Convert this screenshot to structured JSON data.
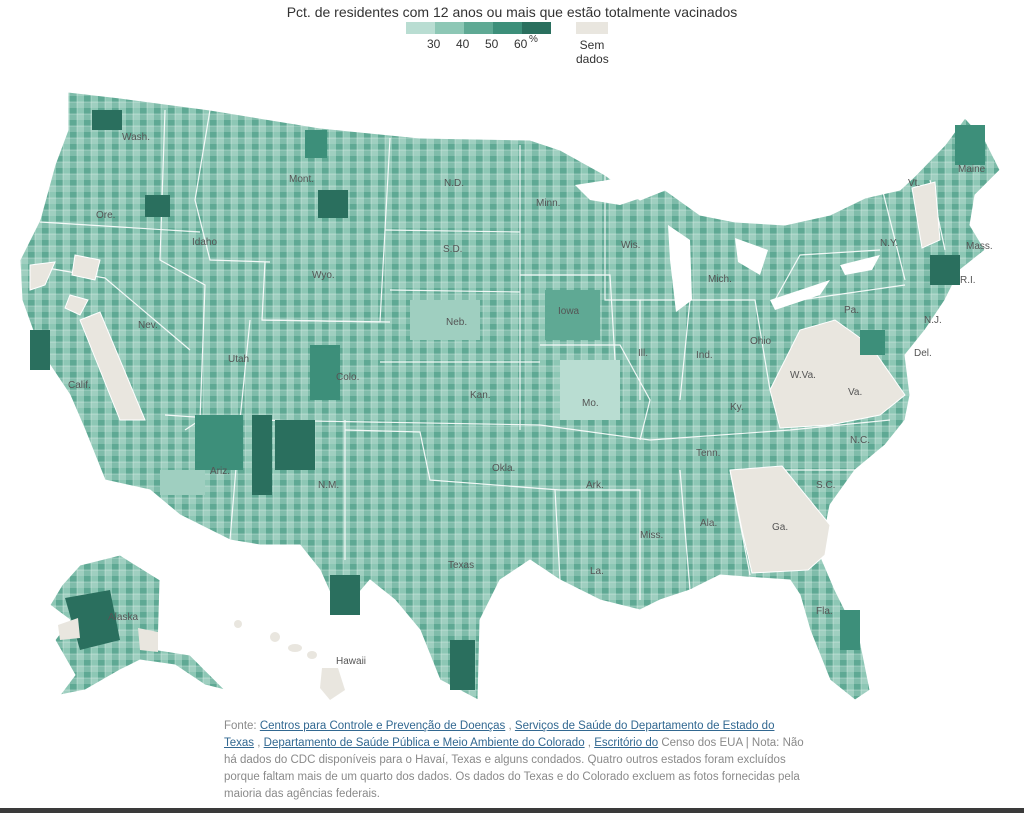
{
  "title": "Pct. de residentes com 12 anos ou mais que estão totalmente vacinados",
  "legend": {
    "colors": [
      "#b9ddd2",
      "#8dc7b5",
      "#5fa994",
      "#3d8f7a",
      "#2a6f5e"
    ],
    "ticks": [
      "30",
      "40",
      "50",
      "60"
    ],
    "unit": "%",
    "no_data_color": "#e9e6df",
    "no_data_line1": "Sem",
    "no_data_line2": "dados"
  },
  "states": {
    "wash": "Wash.",
    "ore": "Ore.",
    "calif": "Calif.",
    "idaho": "Idaho",
    "nev": "Nev.",
    "mont": "Mont.",
    "wyo": "Wyo.",
    "utah": "Utah",
    "ariz": "Ariz.",
    "colo": "Colo.",
    "nm": "N.M.",
    "nd": "N.D.",
    "sd": "S.D.",
    "neb": "Neb.",
    "kan": "Kan.",
    "okla": "Okla.",
    "texas": "Texas",
    "minn": "Minn.",
    "iowa": "Iowa",
    "mo": "Mo.",
    "ark": "Ark.",
    "la": "La.",
    "wis": "Wis.",
    "ill": "Ill.",
    "mich": "Mich.",
    "ind": "Ind.",
    "ohio": "Ohio",
    "ky": "Ky.",
    "tenn": "Tenn.",
    "miss": "Miss.",
    "ala": "Ala.",
    "ga": "Ga.",
    "fla": "Fla.",
    "sc": "S.C.",
    "nc": "N.C.",
    "va": "Va.",
    "wva": "W.Va.",
    "pa": "Pa.",
    "ny": "N.Y.",
    "vt": "Vt.",
    "maine": "Maine",
    "mass": "Mass.",
    "ri": "R.I.",
    "nj": "N.J.",
    "del": "Del.",
    "alaska": "Alaska",
    "hawaii": "Hawaii"
  },
  "source": {
    "prefix": "Fonte:",
    "link1": "Centros para Controle e Prevenção de Doenças",
    "sep1": ",",
    "link2": "Serviços de Saúde do Departamento de Estado do Texas",
    "sep2": ",",
    "link3": "Departamento de Saúde Pública e Meio Ambiente do Colorado",
    "sep3": ",",
    "link4": "Escritório do",
    "text_after": "Censo dos EUA | Nota: Não há dados do CDC disponíveis para o Havaí, Texas e alguns condados. Quatro outros estados foram excluídos porque faltam mais de um quarto dos dados. Os dados do Texas e do Colorado excluem as fotos fornecidas pela maioria das agências federais."
  }
}
